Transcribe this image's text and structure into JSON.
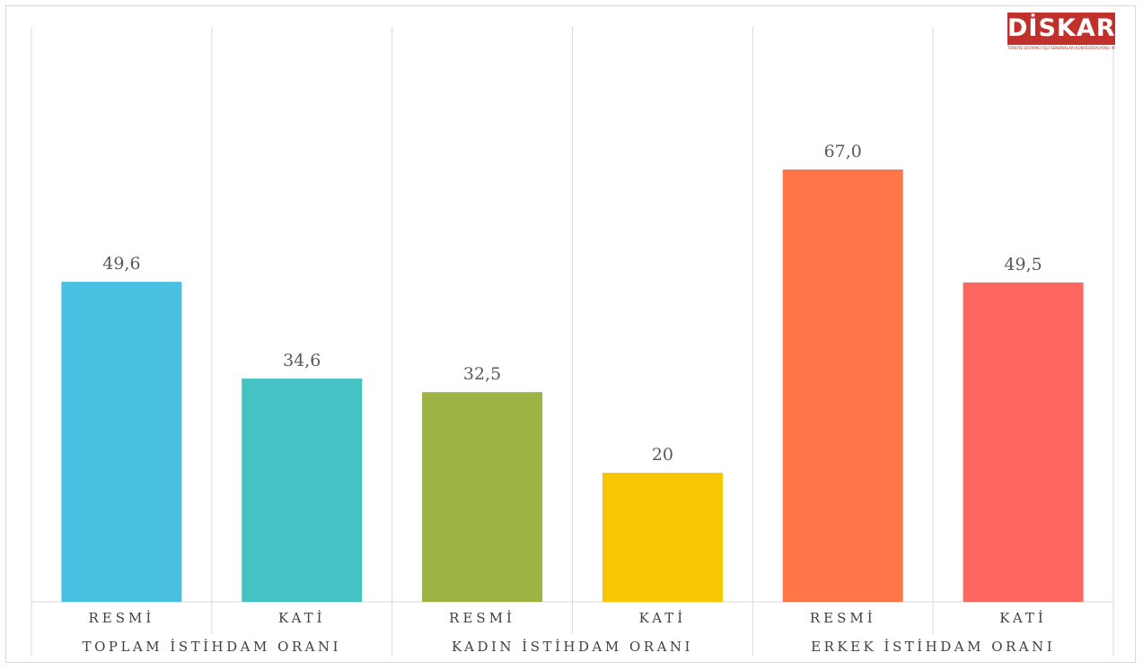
{
  "logo": {
    "text": "DİSKAR",
    "tagline": "TÜRKİYE DEVRİMCİ İŞÇİ SENDİKALARI KONFEDERASYONU ARAŞTIRMA MERKEZİ",
    "color": "#c0312b"
  },
  "chart_data": {
    "type": "bar",
    "title": "",
    "xlabel": "",
    "ylabel": "",
    "ylim": [
      0,
      72
    ],
    "grid": false,
    "legend": "none",
    "groups": [
      {
        "label": "TOPLAM İSTİHDAM ORANI",
        "categories": [
          "RESMİ",
          "KATİ"
        ]
      },
      {
        "label": "KADIN İSTİHDAM ORANI",
        "categories": [
          "RESMİ",
          "KATİ"
        ]
      },
      {
        "label": "ERKEK İSTİHDAM ORANI",
        "categories": [
          "RESMİ",
          "KATİ"
        ]
      }
    ],
    "bars": [
      {
        "group": 0,
        "category": "RESMİ",
        "value": 49.6,
        "label": "49,6",
        "color": "#49c0e2"
      },
      {
        "group": 0,
        "category": "KATİ",
        "value": 34.6,
        "label": "34,6",
        "color": "#44c2c4"
      },
      {
        "group": 1,
        "category": "RESMİ",
        "value": 32.5,
        "label": "32,5",
        "color": "#9db343"
      },
      {
        "group": 1,
        "category": "KATİ",
        "value": 20,
        "label": "20",
        "color": "#f8c602"
      },
      {
        "group": 2,
        "category": "RESMİ",
        "value": 67.0,
        "label": "67,0",
        "color": "#ff7548"
      },
      {
        "group": 2,
        "category": "KATİ",
        "value": 49.5,
        "label": "49,5",
        "color": "#ff6660"
      }
    ]
  }
}
